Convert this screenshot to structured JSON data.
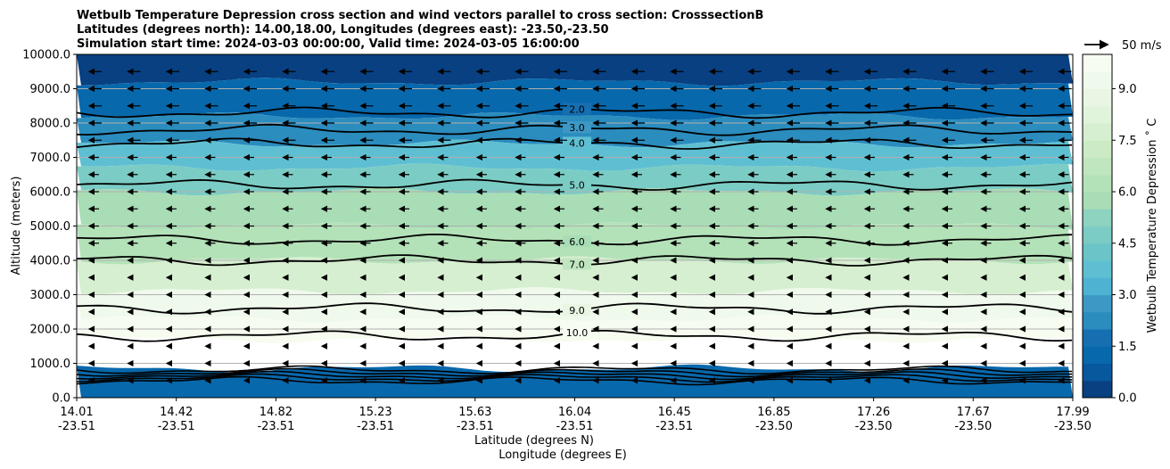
{
  "chart_data": {
    "type": "contourf",
    "title_lines": [
      "Wetbulb Temperature Depression cross section and wind vectors parallel to cross section: CrosssectionB",
      "Latitudes (degrees north): 14.00,18.00, Longitudes (degrees east): -23.50,-23.50",
      "Simulation start time: 2024-03-03 00:00:00, Valid time: 2024-03-05 16:00:00"
    ],
    "ylabel": "Altitude (meters)",
    "xlabel_lat": "Latitude (degrees N)",
    "xlabel_lon": "Longitude (degrees E)",
    "ylim": [
      0,
      10000
    ],
    "y_ticks": [
      {
        "value": 0,
        "label": "0.0"
      },
      {
        "value": 1000,
        "label": "1000.0"
      },
      {
        "value": 2000,
        "label": "2000.0"
      },
      {
        "value": 3000,
        "label": "3000.0"
      },
      {
        "value": 4000,
        "label": "4000.0"
      },
      {
        "value": 5000,
        "label": "5000.0"
      },
      {
        "value": 6000,
        "label": "6000.0"
      },
      {
        "value": 7000,
        "label": "7000.0"
      },
      {
        "value": 8000,
        "label": "8000.0"
      },
      {
        "value": 9000,
        "label": "9000.0"
      },
      {
        "value": 10000,
        "label": "10000.0"
      }
    ],
    "x_ticks": [
      {
        "lat": "14.01",
        "lon": "-23.51"
      },
      {
        "lat": "14.42",
        "lon": "-23.51"
      },
      {
        "lat": "14.82",
        "lon": "-23.51"
      },
      {
        "lat": "15.23",
        "lon": "-23.51"
      },
      {
        "lat": "15.63",
        "lon": "-23.51"
      },
      {
        "lat": "16.04",
        "lon": "-23.51"
      },
      {
        "lat": "16.45",
        "lon": "-23.51"
      },
      {
        "lat": "16.85",
        "lon": "-23.50"
      },
      {
        "lat": "17.26",
        "lon": "-23.50"
      },
      {
        "lat": "17.67",
        "lon": "-23.50"
      },
      {
        "lat": "17.99",
        "lon": "-23.50"
      }
    ],
    "colorbar": {
      "label": "Wetbulb Temperature Depression ˚ C",
      "range": [
        0,
        10
      ],
      "levels": [
        0,
        0.5,
        1,
        1.5,
        2,
        2.5,
        3,
        3.5,
        4,
        4.5,
        5,
        5.5,
        6,
        6.5,
        7,
        7.5,
        8,
        8.5,
        9,
        9.5,
        10
      ],
      "tick_values": [
        0,
        1.5,
        3,
        4.5,
        6,
        7.5,
        9
      ],
      "tick_labels": [
        "0.0",
        "1.5",
        "3.0",
        "4.5",
        "6.0",
        "7.5",
        "9.0"
      ],
      "colors": [
        "#084081",
        "#08589e",
        "#0868ac",
        "#166fb0",
        "#2b8cbe",
        "#3e98c5",
        "#4eb3d3",
        "#5fbfd2",
        "#6bc4c7",
        "#7bccc4",
        "#8ed2c0",
        "#a8ddb5",
        "#b4e2b8",
        "#c0e6bf",
        "#ccebc5",
        "#d6efd0",
        "#e0f3db",
        "#e8f6e3",
        "#eff9ec",
        "#f7fcf0"
      ]
    },
    "wind_reference": {
      "label": "50 m/s",
      "speed": 50
    },
    "contour_levels": [
      {
        "value": 2,
        "label": "2.0",
        "altitude_m": 8300
      },
      {
        "value": 3,
        "label": "3.0",
        "altitude_m": 7800
      },
      {
        "value": 4,
        "label": "4.0",
        "altitude_m": 7400
      },
      {
        "value": 5,
        "label": "5.0",
        "altitude_m": 6200
      },
      {
        "value": 6,
        "label": "6.0",
        "altitude_m": 4600
      },
      {
        "value": 7,
        "label": "7.0",
        "altitude_m": 4000
      },
      {
        "value": 9,
        "label": "9.0",
        "altitude_m": 2600
      },
      {
        "value": 10,
        "label": "10.0",
        "altitude_m": 1800
      }
    ],
    "wet_layer_top_m": 650,
    "grid": "horizontal"
  }
}
